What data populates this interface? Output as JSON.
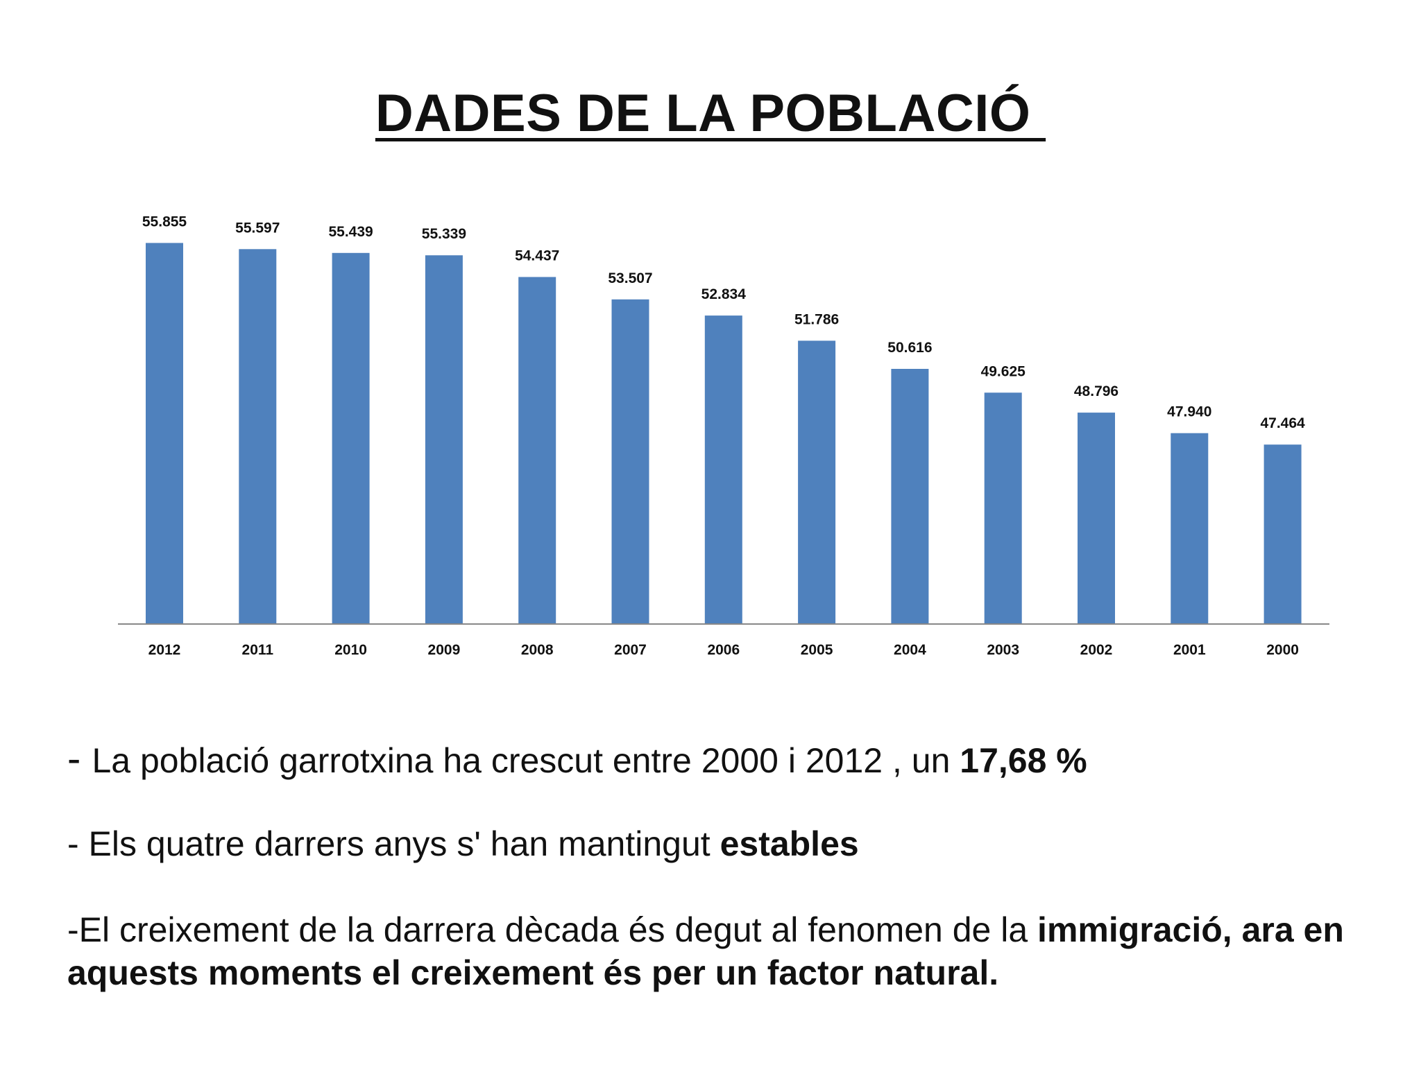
{
  "slide": {
    "title": "DADES DE LA POBLACIÓ "
  },
  "chart_data": {
    "type": "bar",
    "title": "",
    "xlabel": "",
    "ylabel": "",
    "categories": [
      "2012",
      "2011",
      "2010",
      "2009",
      "2008",
      "2007",
      "2006",
      "2005",
      "2004",
      "2003",
      "2002",
      "2001",
      "2000"
    ],
    "values": [
      55855,
      55597,
      55439,
      55339,
      54437,
      53507,
      52834,
      51786,
      50616,
      49625,
      48796,
      47940,
      47464
    ],
    "value_labels": [
      "55.855",
      "55.597",
      "55.439",
      "55.339",
      "54.437",
      "53.507",
      "52.834",
      "51.786",
      "50.616",
      "49.625",
      "48.796",
      "47.940",
      "47.464"
    ],
    "ylim": [
      40000,
      56500
    ],
    "grid": false,
    "legend": "none",
    "bar_color": "#4F81BD",
    "axis_color": "#888888"
  },
  "bullets": [
    {
      "dash": "- ",
      "text": "La població garrotxina ha crescut entre 2000 i 2012 , un ",
      "bold": "17,68 %"
    },
    {
      "text": "- Els quatre darrers anys  s' han mantingut ",
      "bold": "estables"
    },
    {
      "text": "-El creixement de la darrera dècada és degut  al fenomen de la ",
      "bold": "immigració, ara en aquests moments el creixement és per un factor natural."
    }
  ]
}
